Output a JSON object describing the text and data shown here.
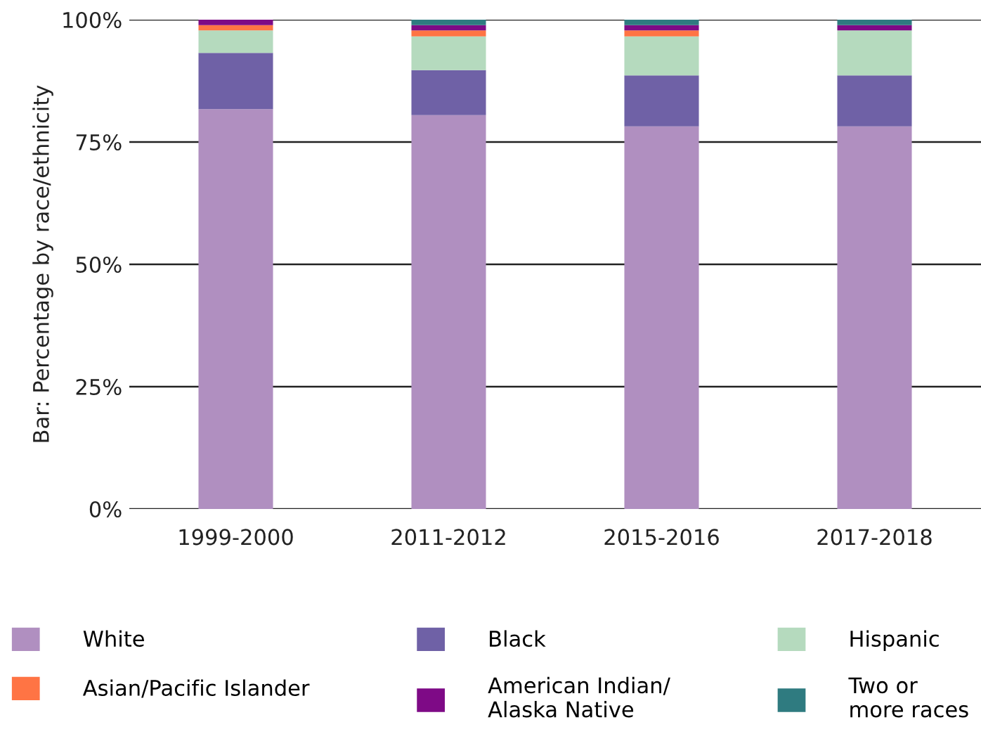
{
  "chart_data": {
    "type": "bar",
    "stacked": true,
    "ylabel": "Bar: Percentage by race/ethnicity",
    "categories": [
      "1999-2000",
      "2011-2012",
      "2015-2016",
      "2017-2018"
    ],
    "series": [
      {
        "name": "White",
        "color": "#b08fc0",
        "values": [
          81.7,
          80.5,
          78.2,
          78.2
        ]
      },
      {
        "name": "Black",
        "color": "#6f61a6",
        "values": [
          11.5,
          9.2,
          10.4,
          10.4
        ]
      },
      {
        "name": "Hispanic",
        "color": "#b5dabe",
        "values": [
          4.6,
          6.9,
          8.0,
          9.2
        ]
      },
      {
        "name": "Asian/Pacific Islander",
        "color": "#ff7444",
        "values": [
          1.1,
          1.2,
          1.2,
          0
        ]
      },
      {
        "name": "American Indian/\nAlaska Native",
        "color": "#7e0a86",
        "values": [
          1.1,
          1.1,
          1.1,
          1.1
        ]
      },
      {
        "name": "Two or\nmore races",
        "color": "#2f7b80",
        "values": [
          0,
          1.1,
          1.1,
          1.1
        ]
      }
    ],
    "ylim": [
      0,
      100
    ],
    "yticks": [
      {
        "value": 0,
        "label": "0%"
      },
      {
        "value": 25,
        "label": "25%"
      },
      {
        "value": 50,
        "label": "50%"
      },
      {
        "value": 75,
        "label": "75%"
      },
      {
        "value": 100,
        "label": "100%"
      }
    ],
    "grid": "y",
    "legend": "bottom"
  }
}
